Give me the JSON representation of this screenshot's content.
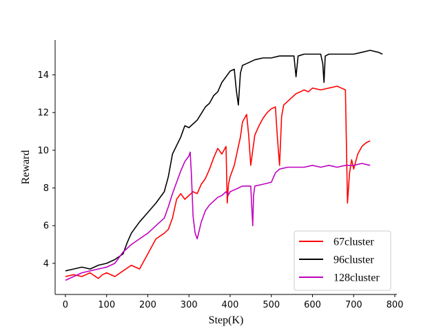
{
  "chart_data": {
    "type": "line",
    "title": "",
    "xlabel": "Step(K)",
    "ylabel": "Reward",
    "xlim": [
      -25,
      805
    ],
    "ylim": [
      2.35,
      15.85
    ],
    "xticks": [
      0,
      100,
      200,
      300,
      400,
      500,
      600,
      700,
      800
    ],
    "yticks": [
      4,
      6,
      8,
      10,
      12,
      14
    ],
    "grid": false,
    "legend": "lower-right",
    "series": [
      {
        "name": "67cluster",
        "color": "#ff0000",
        "x": [
          0,
          20,
          40,
          60,
          80,
          90,
          100,
          120,
          140,
          160,
          180,
          200,
          210,
          220,
          240,
          250,
          260,
          270,
          280,
          290,
          300,
          310,
          320,
          330,
          340,
          350,
          360,
          370,
          380,
          390,
          393,
          396,
          400,
          410,
          420,
          425,
          430,
          440,
          445,
          450,
          455,
          460,
          470,
          480,
          490,
          500,
          510,
          515,
          520,
          525,
          530,
          540,
          550,
          560,
          570,
          580,
          590,
          600,
          620,
          640,
          660,
          670,
          680,
          685,
          690,
          695,
          700,
          710,
          720,
          730,
          740
        ],
        "y": [
          3.3,
          3.4,
          3.3,
          3.5,
          3.2,
          3.4,
          3.5,
          3.3,
          3.6,
          3.9,
          3.7,
          4.5,
          4.9,
          5.3,
          5.6,
          5.8,
          6.4,
          7.4,
          7.7,
          7.4,
          7.6,
          7.8,
          7.7,
          8.2,
          8.5,
          9.0,
          9.6,
          10.1,
          9.8,
          10.2,
          7.2,
          8.2,
          8.6,
          9.2,
          10.2,
          10.7,
          11.5,
          11.9,
          10.8,
          9.2,
          10.0,
          10.8,
          11.3,
          11.7,
          12.0,
          12.2,
          12.3,
          10.6,
          9.2,
          11.8,
          12.4,
          12.6,
          12.8,
          13.0,
          13.1,
          13.2,
          13.1,
          13.3,
          13.2,
          13.3,
          13.4,
          13.3,
          13.2,
          7.2,
          8.8,
          9.5,
          9.0,
          9.8,
          10.2,
          10.4,
          10.5
        ]
      },
      {
        "name": "96cluster",
        "color": "#000000",
        "x": [
          0,
          20,
          40,
          60,
          80,
          100,
          120,
          140,
          150,
          160,
          180,
          200,
          220,
          240,
          250,
          260,
          280,
          290,
          300,
          320,
          340,
          350,
          360,
          370,
          380,
          390,
          400,
          410,
          415,
          420,
          425,
          430,
          440,
          460,
          480,
          500,
          520,
          540,
          555,
          560,
          565,
          580,
          600,
          620,
          625,
          628,
          631,
          640,
          660,
          680,
          700,
          720,
          740,
          760,
          770
        ],
        "y": [
          3.6,
          3.7,
          3.8,
          3.7,
          3.9,
          4.0,
          4.2,
          4.5,
          5.1,
          5.6,
          6.2,
          6.7,
          7.2,
          7.8,
          8.6,
          9.8,
          10.7,
          11.3,
          11.2,
          11.6,
          12.3,
          12.5,
          12.9,
          13.1,
          13.6,
          13.9,
          14.2,
          14.3,
          13.2,
          12.4,
          14.1,
          14.5,
          14.6,
          14.8,
          14.9,
          14.9,
          15.0,
          15.0,
          15.0,
          13.9,
          15.0,
          15.1,
          15.1,
          15.1,
          14.6,
          13.6,
          15.0,
          15.1,
          15.1,
          15.1,
          15.1,
          15.2,
          15.3,
          15.2,
          15.1
        ]
      },
      {
        "name": "128cluster",
        "color": "#bf00bf",
        "x": [
          0,
          20,
          40,
          60,
          80,
          100,
          120,
          140,
          160,
          180,
          200,
          220,
          240,
          250,
          260,
          270,
          280,
          290,
          300,
          303,
          306,
          310,
          315,
          320,
          330,
          340,
          350,
          360,
          370,
          380,
          390,
          395,
          400,
          410,
          420,
          430,
          440,
          450,
          452,
          455,
          457,
          460,
          480,
          500,
          510,
          520,
          540,
          560,
          580,
          600,
          620,
          640,
          660,
          680,
          700,
          720,
          740
        ],
        "y": [
          3.1,
          3.3,
          3.5,
          3.6,
          3.7,
          3.8,
          4.0,
          4.6,
          5.0,
          5.3,
          5.6,
          6.0,
          6.4,
          7.0,
          7.7,
          8.3,
          8.9,
          9.4,
          9.7,
          9.9,
          8.7,
          6.5,
          5.6,
          5.3,
          6.2,
          6.8,
          7.1,
          7.3,
          7.5,
          7.6,
          7.8,
          7.6,
          7.8,
          7.9,
          8.0,
          8.1,
          8.1,
          8.1,
          7.2,
          6.0,
          7.6,
          8.1,
          8.2,
          8.3,
          8.8,
          9.0,
          9.1,
          9.1,
          9.1,
          9.2,
          9.1,
          9.2,
          9.1,
          9.2,
          9.2,
          9.3,
          9.2
        ]
      }
    ]
  }
}
